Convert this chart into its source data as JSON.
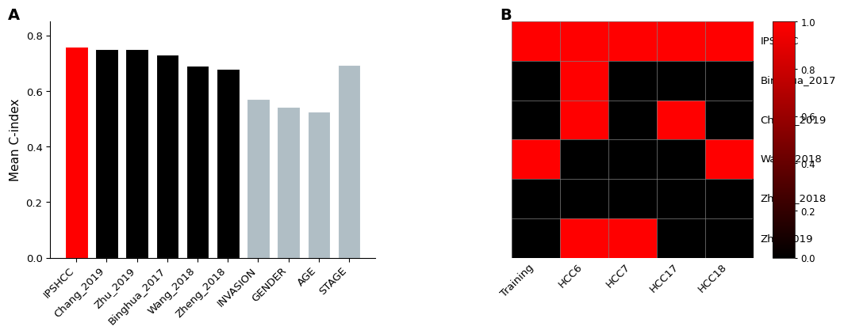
{
  "bar_categories": [
    "IPSHCC",
    "Chang_2019",
    "Zhu_2019",
    "Binghua_2017",
    "Wang_2018",
    "Zheng_2018",
    "INVASION",
    "GENDER",
    "AGE",
    "STAGE"
  ],
  "bar_values": [
    0.76,
    0.752,
    0.751,
    0.732,
    0.692,
    0.681,
    0.571,
    0.542,
    0.526,
    0.693
  ],
  "bar_colors": [
    "#FF0000",
    "#000000",
    "#000000",
    "#000000",
    "#000000",
    "#000000",
    "#B0BEC5",
    "#B0BEC5",
    "#B0BEC5",
    "#B0BEC5"
  ],
  "ylabel": "Mean C-index",
  "ylim": [
    0.0,
    0.85
  ],
  "yticks": [
    0.0,
    0.2,
    0.4,
    0.6,
    0.8
  ],
  "panel_a_label": "A",
  "panel_b_label": "B",
  "heatmap_rows": [
    "IPSHCC",
    "Binghua_2017",
    "Chang_2019",
    "Wang_2018",
    "Zheng_2018",
    "Zhu_2019"
  ],
  "heatmap_cols": [
    "Training",
    "HCC6",
    "HCC7",
    "HCC17",
    "HCC18"
  ],
  "heatmap_data": [
    [
      1,
      1,
      1,
      1,
      1
    ],
    [
      0,
      1,
      0,
      0,
      0
    ],
    [
      0,
      1,
      0,
      1,
      0
    ],
    [
      1,
      0,
      0,
      0,
      1
    ],
    [
      0,
      0,
      0,
      0,
      0
    ],
    [
      0,
      1,
      1,
      0,
      0
    ]
  ],
  "heatmap_red": "#FF0000",
  "heatmap_black": "#000000",
  "colorbar_ticks": [
    0.0,
    0.2,
    0.4,
    0.6,
    0.8,
    1.0
  ],
  "bar_edgecolor": "white",
  "spine_color": "#000000",
  "grid_color": "#808080"
}
